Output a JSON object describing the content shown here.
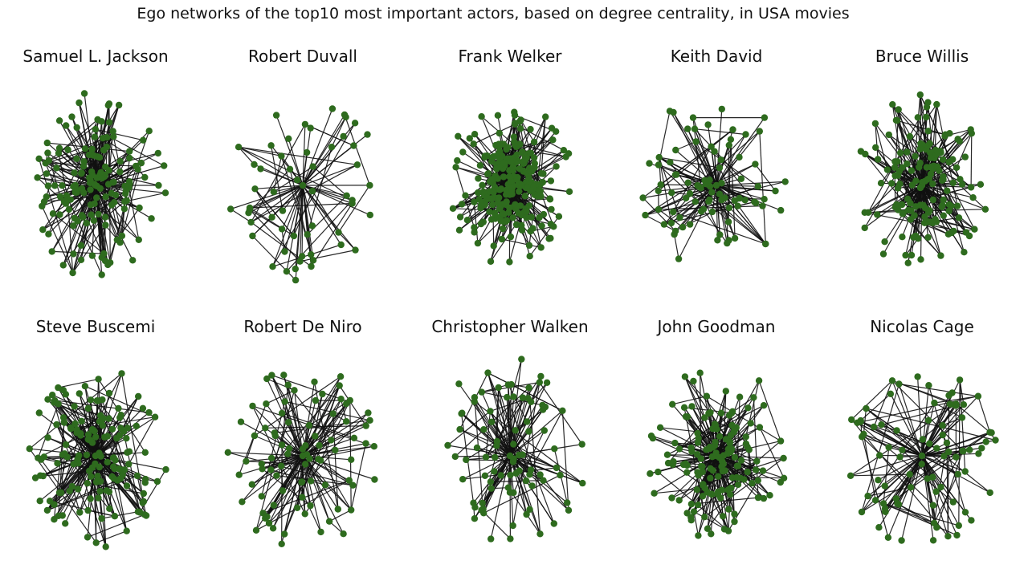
{
  "title": "Ego networks of the top10 most important actors, based on degree centrality, in USA movies",
  "colors": {
    "node": "#2e6b1e",
    "edge": "#111111",
    "background": "#ffffff"
  },
  "graphs": [
    {
      "title": "Samuel L. Jackson",
      "style": "dense"
    },
    {
      "title": "Robert Duvall",
      "style": "sparse-star"
    },
    {
      "title": "Frank Welker",
      "style": "very-dense"
    },
    {
      "title": "Keith David",
      "style": "star"
    },
    {
      "title": "Bruce Willis",
      "style": "dense"
    },
    {
      "title": "Steve Buscemi",
      "style": "dense"
    },
    {
      "title": "Robert De Niro",
      "style": "star"
    },
    {
      "title": "Christopher Walken",
      "style": "star"
    },
    {
      "title": "John Goodman",
      "style": "dense"
    },
    {
      "title": "Nicolas Cage",
      "style": "star"
    }
  ]
}
